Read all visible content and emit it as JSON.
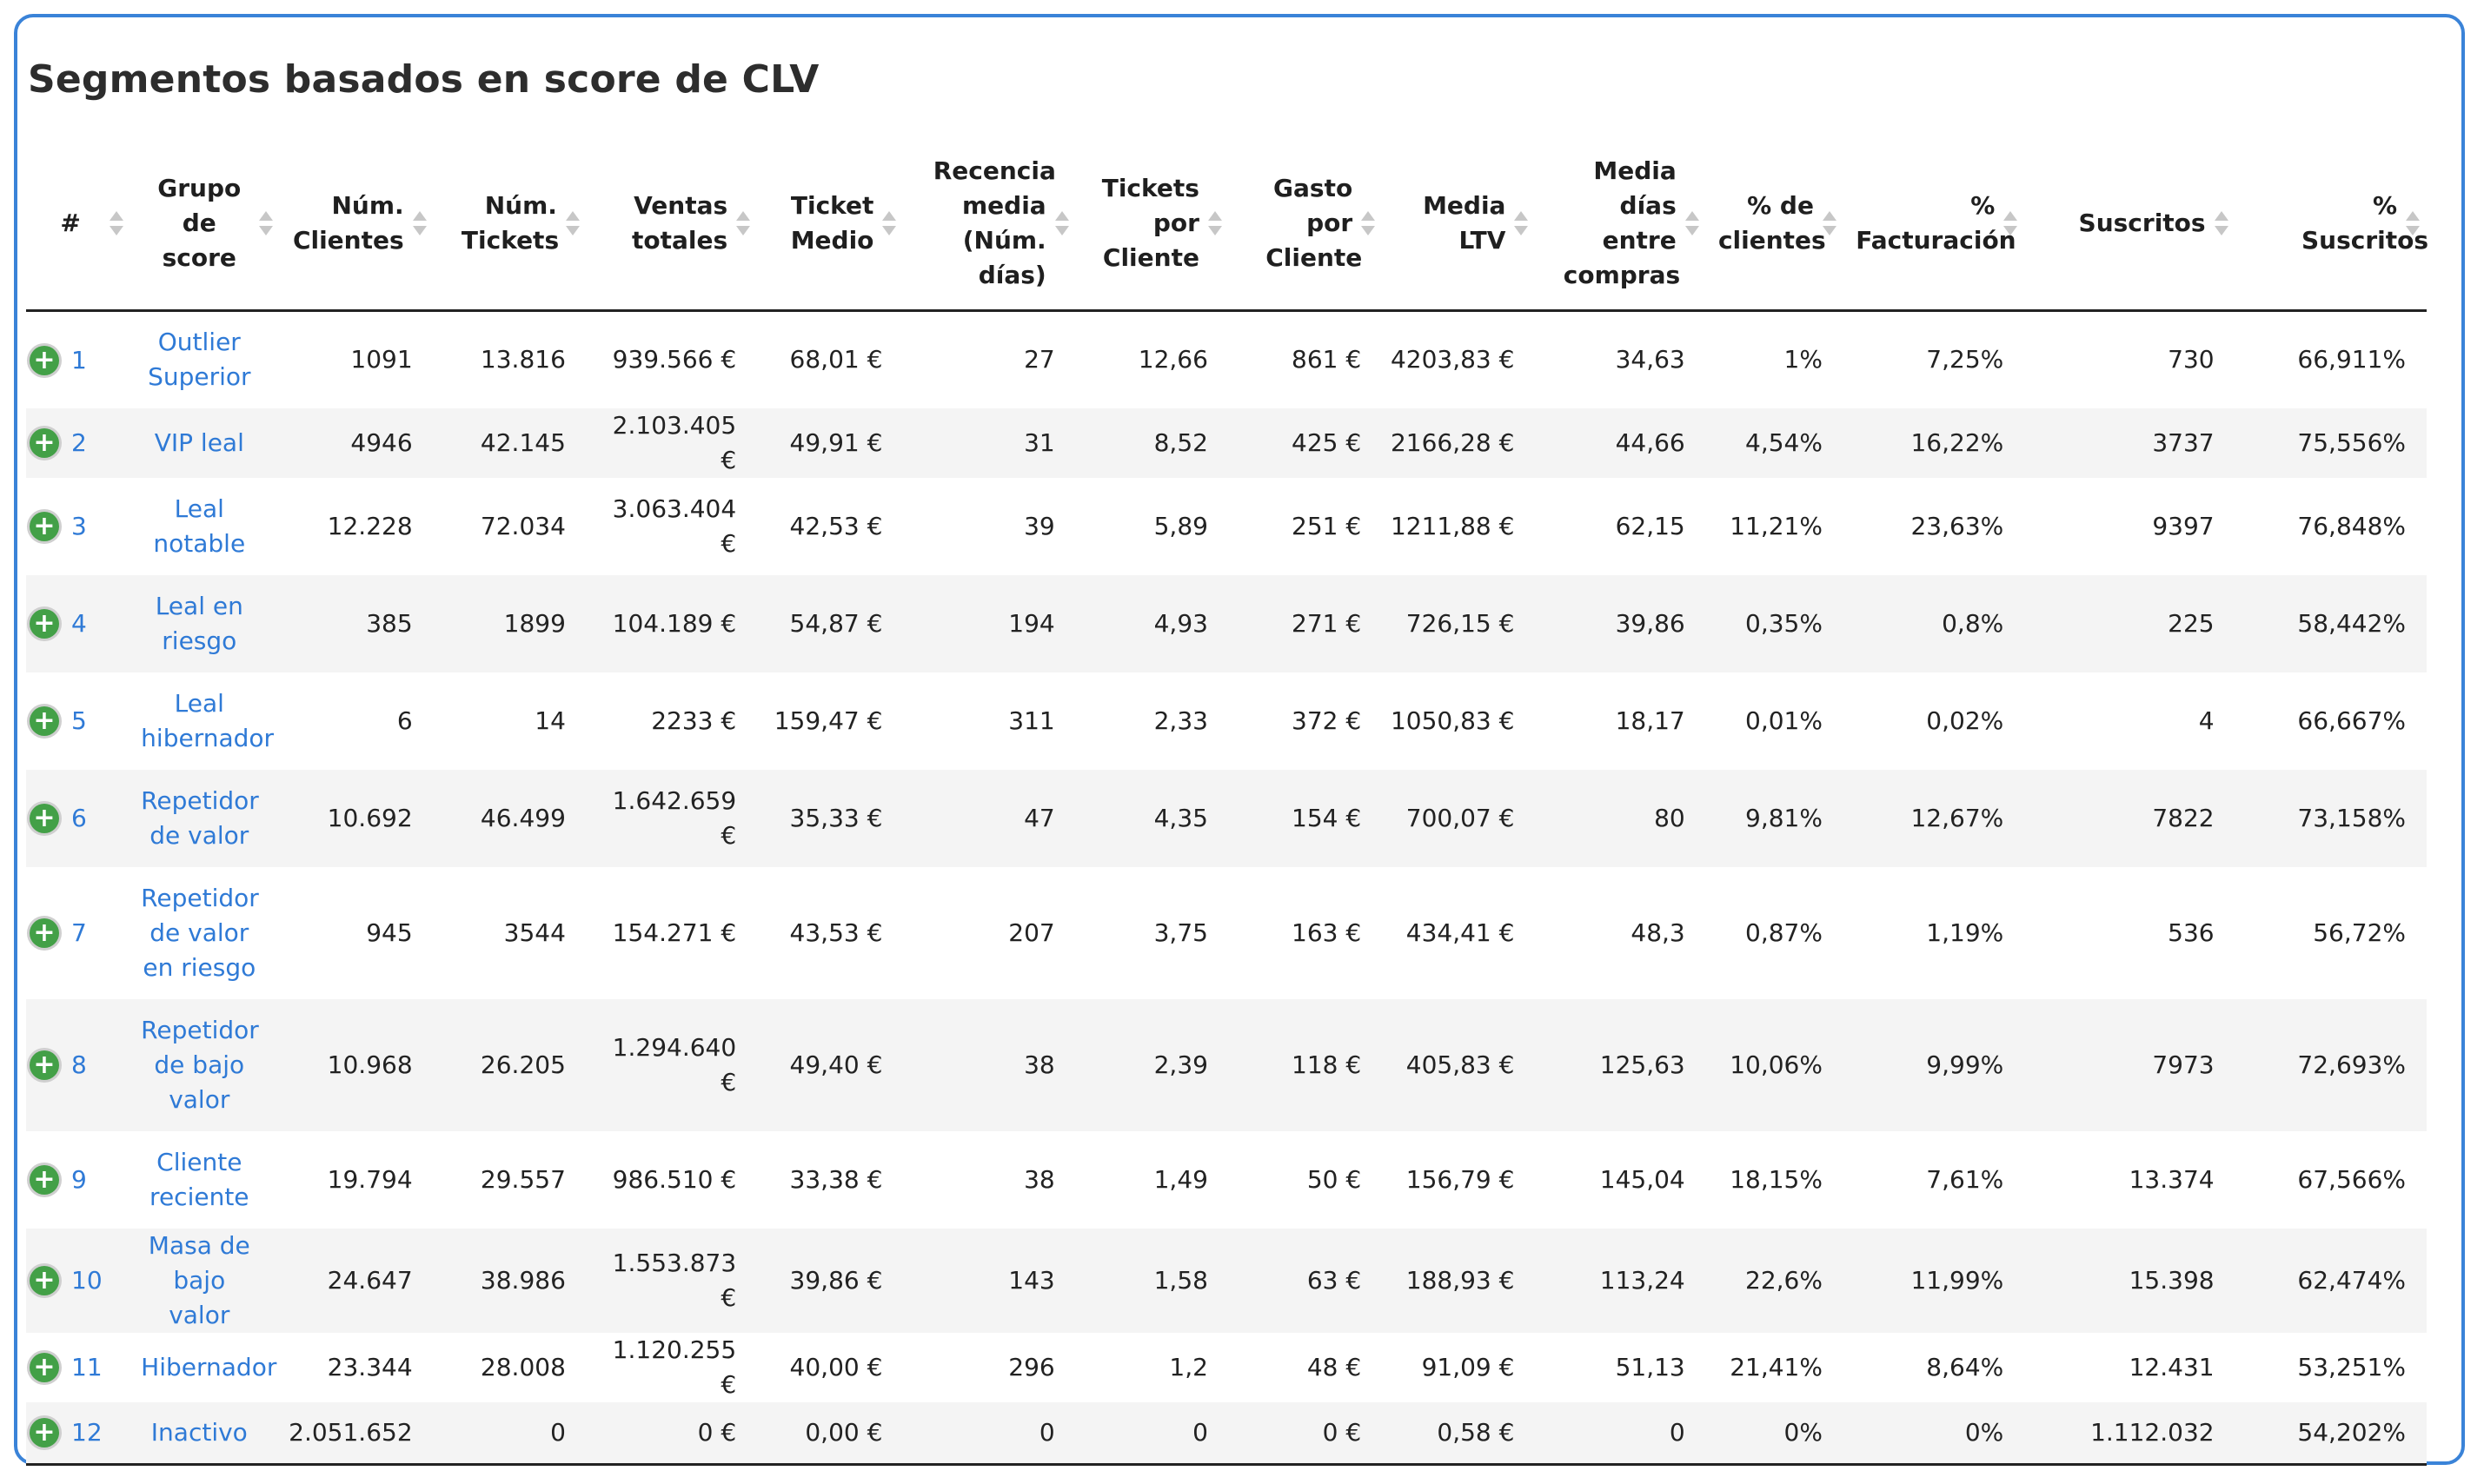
{
  "title": "Segmentos basados en score de CLV",
  "columns": [
    "#",
    "Grupo de score",
    "Núm. Clientes",
    "Núm. Tickets",
    "Ventas totales",
    "Ticket Medio",
    "Recencia media (Núm. días)",
    "Tickets por Cliente",
    "Gasto por Cliente",
    "Media LTV",
    "Media días entre compras",
    "% de clientes",
    "% Facturación",
    "Suscritos",
    "% Suscritos"
  ],
  "expand_icon": "plus-circle-icon",
  "colors": {
    "link": "#2f7ad6",
    "expand": "#43a047",
    "border": "#3a83d8"
  },
  "rows": [
    [
      "1",
      "Outlier Superior",
      "1091",
      "13.816",
      "939.566 €",
      "68,01 €",
      "27",
      "12,66",
      "861 €",
      "4203,83 €",
      "34,63",
      "1%",
      "7,25%",
      "730",
      "66,911%"
    ],
    [
      "2",
      "VIP leal",
      "4946",
      "42.145",
      "2.103.405 €",
      "49,91 €",
      "31",
      "8,52",
      "425 €",
      "2166,28 €",
      "44,66",
      "4,54%",
      "16,22%",
      "3737",
      "75,556%"
    ],
    [
      "3",
      "Leal notable",
      "12.228",
      "72.034",
      "3.063.404 €",
      "42,53 €",
      "39",
      "5,89",
      "251 €",
      "1211,88 €",
      "62,15",
      "11,21%",
      "23,63%",
      "9397",
      "76,848%"
    ],
    [
      "4",
      "Leal en riesgo",
      "385",
      "1899",
      "104.189 €",
      "54,87 €",
      "194",
      "4,93",
      "271 €",
      "726,15 €",
      "39,86",
      "0,35%",
      "0,8%",
      "225",
      "58,442%"
    ],
    [
      "5",
      "Leal hibernador",
      "6",
      "14",
      "2233 €",
      "159,47 €",
      "311",
      "2,33",
      "372 €",
      "1050,83 €",
      "18,17",
      "0,01%",
      "0,02%",
      "4",
      "66,667%"
    ],
    [
      "6",
      "Repetidor de valor",
      "10.692",
      "46.499",
      "1.642.659 €",
      "35,33 €",
      "47",
      "4,35",
      "154 €",
      "700,07 €",
      "80",
      "9,81%",
      "12,67%",
      "7822",
      "73,158%"
    ],
    [
      "7",
      "Repetidor de valor en riesgo",
      "945",
      "3544",
      "154.271 €",
      "43,53 €",
      "207",
      "3,75",
      "163 €",
      "434,41 €",
      "48,3",
      "0,87%",
      "1,19%",
      "536",
      "56,72%"
    ],
    [
      "8",
      "Repetidor de bajo valor",
      "10.968",
      "26.205",
      "1.294.640 €",
      "49,40 €",
      "38",
      "2,39",
      "118 €",
      "405,83 €",
      "125,63",
      "10,06%",
      "9,99%",
      "7973",
      "72,693%"
    ],
    [
      "9",
      "Cliente reciente",
      "19.794",
      "29.557",
      "986.510 €",
      "33,38 €",
      "38",
      "1,49",
      "50 €",
      "156,79 €",
      "145,04",
      "18,15%",
      "7,61%",
      "13.374",
      "67,566%"
    ],
    [
      "10",
      "Masa de bajo valor",
      "24.647",
      "38.986",
      "1.553.873 €",
      "39,86 €",
      "143",
      "1,58",
      "63 €",
      "188,93 €",
      "113,24",
      "22,6%",
      "11,99%",
      "15.398",
      "62,474%"
    ],
    [
      "11",
      "Hibernador",
      "23.344",
      "28.008",
      "1.120.255 €",
      "40,00 €",
      "296",
      "1,2",
      "48 €",
      "91,09 €",
      "51,13",
      "21,41%",
      "8,64%",
      "12.431",
      "53,251%"
    ],
    [
      "12",
      "Inactivo",
      "2.051.652",
      "0",
      "0 €",
      "0,00 €",
      "0",
      "0",
      "0 €",
      "0,58 €",
      "0",
      "0%",
      "0%",
      "1.112.032",
      "54,202%"
    ]
  ]
}
